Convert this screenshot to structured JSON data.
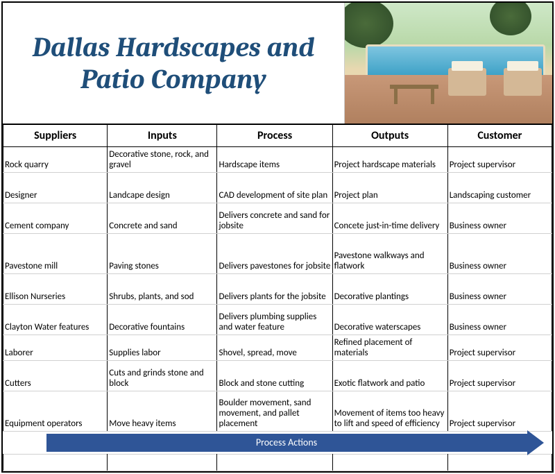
{
  "title": "Dallas Hardscapes and Patio Company",
  "title_color": "#1f4e79",
  "columns": [
    "Suppliers",
    "Inputs",
    "Process",
    "Outputs",
    "Customer"
  ],
  "rows": [
    {
      "h": "norm",
      "c": [
        "Rock quarry",
        "Decorative stone, rock, and gravel",
        "Hardscape items",
        "Project hardscape materials",
        "Project supervisor"
      ]
    },
    {
      "h": "tall",
      "c": [
        "Designer",
        "Landcape design",
        "CAD development of site plan",
        "Project plan",
        "Landscaping customer"
      ]
    },
    {
      "h": "tall",
      "c": [
        "Cement company",
        "Concrete and sand",
        "Delivers concrete and sand for jobsite",
        "Concete just-in-time delivery",
        "Business owner"
      ]
    },
    {
      "h": "vtall",
      "c": [
        "Pavestone mill",
        "Paving stones",
        "Delivers pavestones for jobsite",
        "Pavestone walkways and flatwork",
        "Business owner"
      ]
    },
    {
      "h": "tall",
      "c": [
        "Ellison Nurseries",
        "Shrubs, plants, and sod",
        "Delivers plants for the jobsite",
        "Decorative plantings",
        "Business owner"
      ]
    },
    {
      "h": "tall",
      "c": [
        "Clayton Water features",
        "Decorative fountains",
        "Delivers plumbing supplies and water feature",
        "Decorative waterscapes",
        "Business owner"
      ]
    },
    {
      "h": "norm",
      "c": [
        "Laborer",
        "Supplies labor",
        "Shovel, spread, move",
        "Refined placement of materials",
        "Project supervisor"
      ]
    },
    {
      "h": "tall",
      "c": [
        "Cutters",
        "Cuts and grinds stone and block",
        "Block and stone cutting",
        "Exotic flatwork and patio",
        "Project supervisor"
      ]
    },
    {
      "h": "vtall",
      "c": [
        "Equipment operators",
        "Move heavy items",
        "Boulder movement, sand movement, and pallet placement",
        "Movement of items too heavy to lift and speed of efficiency",
        "Project supervisor"
      ]
    }
  ],
  "arrow_label": "Process Actions",
  "arrow_color": "#2f5597",
  "column_widths_pct": [
    20,
    20,
    20,
    20,
    20
  ]
}
